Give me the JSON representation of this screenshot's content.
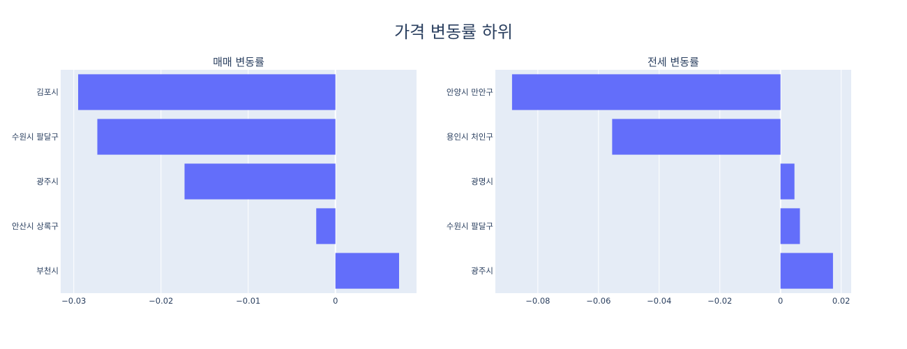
{
  "title": "가격 변동률 하위",
  "chart_data": [
    {
      "type": "bar",
      "orientation": "horizontal",
      "title": "매매 변동률",
      "categories": [
        "김포시",
        "수원시 팔달구",
        "광주시",
        "안산시 상록구",
        "부천시"
      ],
      "values": [
        -0.0295,
        -0.0273,
        -0.0173,
        -0.0022,
        0.0073
      ],
      "xlim": [
        -0.0315,
        0.0093
      ],
      "xticks": [
        -0.03,
        -0.02,
        -0.01,
        0
      ],
      "xtick_labels": [
        "−0.03",
        "−0.02",
        "−0.01",
        "0"
      ],
      "bar_color": "#636efa",
      "grid": true
    },
    {
      "type": "bar",
      "orientation": "horizontal",
      "title": "전세 변동률",
      "categories": [
        "안양시 만안구",
        "용인시 처인구",
        "광명시",
        "수원시 팔달구",
        "광주시"
      ],
      "values": [
        -0.0885,
        -0.0555,
        0.0046,
        0.0064,
        0.0173
      ],
      "xlim": [
        -0.094,
        0.0233
      ],
      "xticks": [
        -0.08,
        -0.06,
        -0.04,
        -0.02,
        0,
        0.02
      ],
      "xtick_labels": [
        "−0.08",
        "−0.06",
        "−0.04",
        "−0.02",
        "0",
        "0.02"
      ],
      "bar_color": "#636efa",
      "grid": true
    }
  ]
}
